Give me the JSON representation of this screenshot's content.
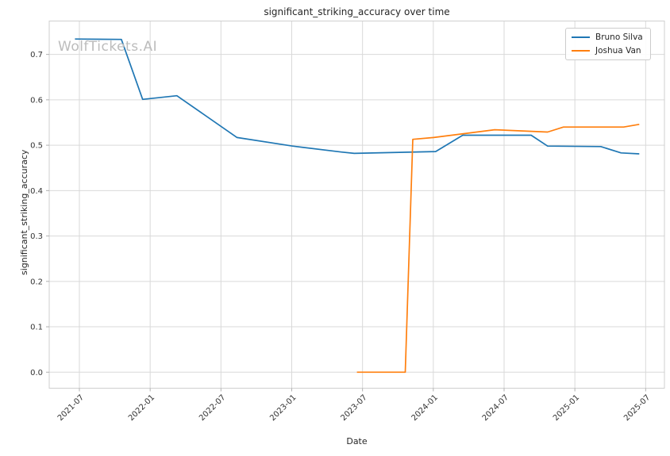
{
  "chart_data": {
    "type": "line",
    "title": "significant_striking_accuracy over time",
    "xlabel": "Date",
    "ylabel": "significant_striking_accuracy",
    "watermark": "WolfTickets.AI",
    "grid": true,
    "legend_position": "upper right",
    "x_tick_labels": [
      "2021-07",
      "2022-01",
      "2022-07",
      "2023-01",
      "2023-07",
      "2024-01",
      "2024-07",
      "2025-01",
      "2025-07"
    ],
    "y_tick_labels": [
      "0.0",
      "0.1",
      "0.2",
      "0.3",
      "0.4",
      "0.5",
      "0.6",
      "0.7"
    ],
    "ylim": [
      -0.037,
      0.773
    ],
    "xlim": [
      "2021-04",
      "2025-08"
    ],
    "colors": {
      "background": "#ffffff",
      "grid": "#d9d9d9",
      "spine": "#cfcfcf",
      "tick": "#b0b0b0",
      "text": "#262626",
      "tick_text": "#333333",
      "watermark": "#bcbcbc"
    },
    "series": [
      {
        "name": "Bruno Silva",
        "color": "#1f77b4",
        "points": [
          [
            "2021-06-20",
            0.734
          ],
          [
            "2021-10-18",
            0.733
          ],
          [
            "2021-12-12",
            0.601
          ],
          [
            "2022-03-09",
            0.609
          ],
          [
            "2022-08-12",
            0.517
          ],
          [
            "2023-01-03",
            0.498
          ],
          [
            "2023-05-07",
            0.485
          ],
          [
            "2023-06-10",
            0.482
          ],
          [
            "2024-01-07",
            0.486
          ],
          [
            "2024-03-16",
            0.522
          ],
          [
            "2024-09-10",
            0.522
          ],
          [
            "2024-10-22",
            0.498
          ],
          [
            "2025-03-07",
            0.497
          ],
          [
            "2025-04-29",
            0.483
          ],
          [
            "2025-06-15",
            0.481
          ]
        ]
      },
      {
        "name": "Joshua Van",
        "color": "#ff7f0e",
        "points": [
          [
            "2023-06-17",
            0.0
          ],
          [
            "2023-10-20",
            0.0
          ],
          [
            "2023-11-09",
            0.513
          ],
          [
            "2024-01-02",
            0.517
          ],
          [
            "2024-06-07",
            0.534
          ],
          [
            "2024-10-22",
            0.529
          ],
          [
            "2024-12-02",
            0.54
          ],
          [
            "2025-05-05",
            0.54
          ],
          [
            "2025-06-15",
            0.546
          ]
        ]
      }
    ]
  }
}
